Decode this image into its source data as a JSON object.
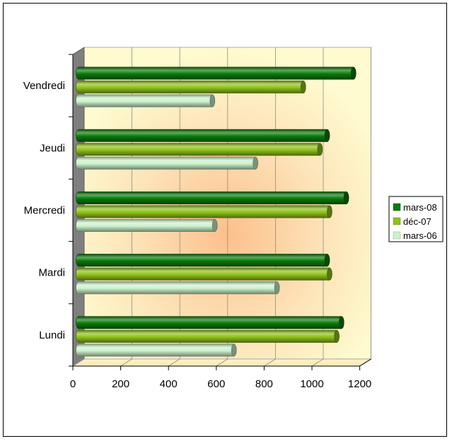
{
  "chart_data": {
    "type": "bar",
    "orientation": "horizontal",
    "style": "3d-cylinder",
    "categories": [
      "Lundi",
      "Mardi",
      "Mercredi",
      "Jeudi",
      "Vendredi"
    ],
    "series": [
      {
        "name": "mars-08",
        "color": "#0a7a0a",
        "values": [
          1100,
          1040,
          1120,
          1040,
          1150
        ]
      },
      {
        "name": "déc-07",
        "color": "#8fc21a",
        "values": [
          1080,
          1050,
          1050,
          1010,
          940
        ]
      },
      {
        "name": "mars-06",
        "color": "#ccf2cc",
        "values": [
          650,
          830,
          570,
          740,
          560
        ]
      }
    ],
    "x_ticks": [
      "0",
      "200",
      "400",
      "600",
      "800",
      "1000",
      "1200"
    ],
    "xlim": [
      0,
      1200
    ],
    "grid": true,
    "legend": "right"
  }
}
